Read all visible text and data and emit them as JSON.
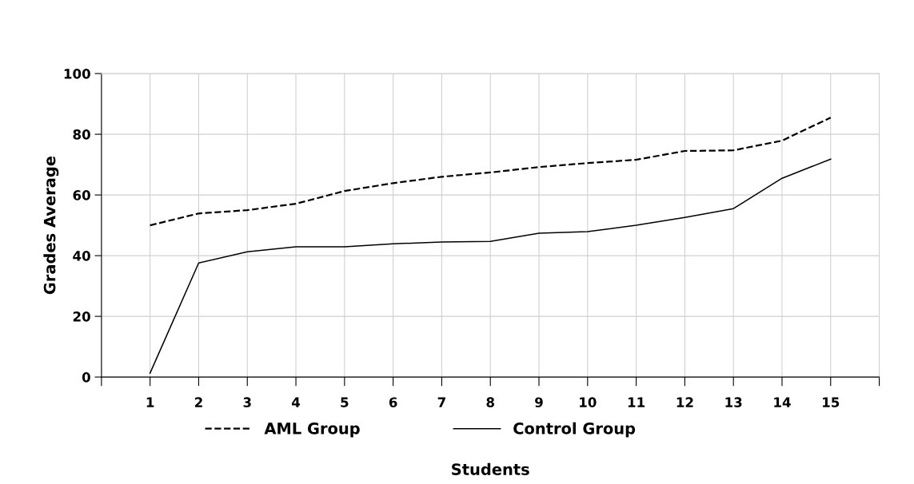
{
  "chart_data": {
    "type": "line",
    "xlabel": "Students",
    "ylabel": "Grades Average",
    "x": [
      1,
      2,
      3,
      4,
      5,
      6,
      7,
      8,
      9,
      10,
      11,
      12,
      13,
      14,
      15
    ],
    "series": [
      {
        "name": "AML Group",
        "color": "#000000",
        "line_style": "dashed",
        "values": [
          50,
          53.9,
          55,
          57.1,
          61.3,
          63.9,
          66,
          67.4,
          69.2,
          70.5,
          71.6,
          74.5,
          74.7,
          77.9,
          85.5
        ]
      },
      {
        "name": "Control Group",
        "color": "#000000",
        "line_style": "solid",
        "values": [
          1.3,
          37.6,
          41.3,
          42.9,
          42.9,
          43.9,
          44.5,
          44.7,
          47.4,
          47.9,
          50,
          52.6,
          55.5,
          65.5,
          71.8
        ]
      }
    ],
    "xlim": [
      0,
      16
    ],
    "xticks": [
      {
        "value": 0,
        "label": null
      },
      1,
      2,
      3,
      4,
      5,
      6,
      7,
      8,
      9,
      10,
      11,
      12,
      13,
      14,
      15,
      {
        "value": 16,
        "label": null
      }
    ],
    "ylim": [
      0,
      100
    ],
    "yticks": [
      0,
      20,
      40,
      60,
      80,
      100
    ],
    "grid": true,
    "legend": "bottom",
    "marker": "none"
  }
}
